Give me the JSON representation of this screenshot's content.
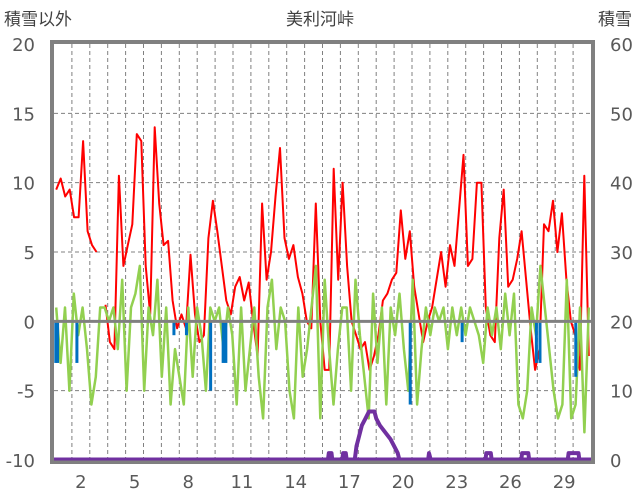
{
  "chart_data": {
    "type": "line",
    "title": "美利河峠",
    "ylabel_left": "積雪以外",
    "ylabel_right": "積雪",
    "xlim": [
      1,
      31
    ],
    "ylim_left": [
      -10,
      20
    ],
    "ylim_right": [
      0,
      60
    ],
    "yticks_left": [
      "20",
      "15",
      "10",
      "5",
      "0",
      "-5",
      "-10"
    ],
    "yticks_left_values": [
      20,
      15,
      10,
      5,
      0,
      -5,
      -10
    ],
    "yticks_right": [
      "60",
      "50",
      "40",
      "30",
      "20",
      "10",
      "0"
    ],
    "yticks_right_values": [
      60,
      50,
      40,
      30,
      20,
      10,
      0
    ],
    "xticks": [
      "2",
      "5",
      "8",
      "11",
      "14",
      "17",
      "20",
      "23",
      "26",
      "29"
    ],
    "xticks_values": [
      2,
      5,
      8,
      11,
      14,
      17,
      20,
      23,
      26,
      29
    ],
    "grid": true,
    "colors": {
      "red": "#ff0000",
      "green": "#92d050",
      "blue": "#0070c0",
      "purple": "#7030a0",
      "axis": "#808080"
    },
    "series": [
      {
        "name": "red",
        "axis": "left",
        "start_day": 1,
        "end_day": 31,
        "values": [
          9.5,
          10.3,
          9,
          9.5,
          7.5,
          7.5,
          13,
          6.5,
          5.5,
          5,
          null,
          1.2,
          -1.5,
          -2,
          10.5,
          4,
          5.5,
          7,
          13.5,
          13,
          4,
          0.5,
          14,
          8.5,
          5.5,
          5.8,
          1.5,
          -0.5,
          0.5,
          -0.5,
          4.8,
          0.5,
          -1.5,
          -1,
          6,
          8.7,
          6.5,
          4,
          1.5,
          0.5,
          2.5,
          3.2,
          1.5,
          2.8,
          0,
          -2.5,
          8.5,
          3,
          5,
          9,
          12.5,
          6,
          4.5,
          5.5,
          3.2,
          2,
          0,
          -0.5,
          8.5,
          0,
          -3.5,
          -3.5,
          11,
          3,
          10,
          4,
          0,
          -1,
          -2,
          -1.5,
          -3.5,
          -2.5,
          -1,
          1.5,
          2,
          3,
          3.5,
          8,
          4.5,
          6.5,
          2.5,
          0.5,
          -1.5,
          0,
          1,
          3,
          5,
          2.5,
          5.5,
          4,
          8,
          12,
          4,
          4.5,
          10,
          10,
          1,
          -1,
          -1.5,
          6,
          9.5,
          2.5,
          3,
          4.5,
          6.5,
          3,
          -0.5,
          -3.5,
          -2,
          7,
          6.5,
          8.7,
          5,
          7.8,
          3,
          0,
          -1,
          -3.5,
          10.5,
          -2.5
        ]
      },
      {
        "name": "green",
        "axis": "left",
        "start_day": 1,
        "end_day": 31,
        "values": [
          1,
          -3,
          1,
          -5,
          2,
          -1,
          1,
          -2,
          -6,
          -4,
          1,
          1,
          0,
          1,
          -2,
          3,
          -5,
          1,
          2,
          4,
          -5,
          1,
          -1,
          3,
          -4,
          1,
          -6,
          -2,
          -4,
          -6,
          1,
          -4,
          1,
          -1,
          -5,
          1,
          0,
          1,
          -2,
          1,
          -1,
          -6,
          1,
          -5,
          -2,
          1,
          -4,
          -7,
          1,
          3,
          -2,
          1,
          0,
          -5,
          -7,
          1,
          -4,
          -2,
          1,
          4,
          -7,
          3,
          -2,
          -6,
          -2,
          1,
          1,
          -5,
          3,
          -1,
          -4,
          -7,
          2,
          -3,
          1,
          -6,
          1,
          -1,
          2,
          -2,
          -5,
          3,
          -6,
          -2,
          1,
          -1,
          1,
          0,
          1,
          -2,
          1,
          -1,
          1,
          -1,
          1,
          0,
          -1,
          -3,
          1,
          -1,
          1,
          -2,
          2,
          -1,
          2,
          -6,
          -7,
          -5,
          1,
          -1,
          4,
          1,
          -2,
          -5,
          -7,
          -6,
          3,
          -7,
          -6,
          1,
          -8,
          1
        ]
      },
      {
        "name": "blue",
        "axis": "left",
        "kind": "bar",
        "points": [
          [
            1.1,
            -3
          ],
          [
            1.2,
            -3
          ],
          [
            2.28,
            -3
          ],
          [
            7.7,
            -1
          ],
          [
            8.4,
            -1
          ],
          [
            9.75,
            -5
          ],
          [
            10.45,
            -3
          ],
          [
            10.6,
            -3
          ],
          [
            20.9,
            -6
          ],
          [
            23.8,
            -1.5
          ],
          [
            27.95,
            -3
          ],
          [
            28.15,
            -3
          ],
          [
            30.15,
            -4
          ]
        ]
      },
      {
        "name": "purple",
        "axis": "right",
        "points": [
          [
            1,
            0
          ],
          [
            3.3,
            0
          ],
          null,
          [
            3.7,
            0
          ],
          [
            16.3,
            0
          ],
          [
            16.35,
            1
          ],
          [
            16.5,
            1
          ],
          [
            16.55,
            0
          ],
          [
            17.1,
            0
          ],
          [
            17.15,
            1
          ],
          [
            17.3,
            1
          ],
          [
            17.35,
            0
          ],
          [
            17.8,
            0
          ],
          [
            17.9,
            2
          ],
          [
            18.0,
            3
          ],
          [
            18.1,
            4
          ],
          [
            18.2,
            5
          ],
          [
            18.4,
            6
          ],
          [
            18.6,
            7
          ],
          [
            18.9,
            7
          ],
          [
            19.0,
            6
          ],
          [
            19.2,
            5
          ],
          [
            19.5,
            4
          ],
          [
            19.8,
            3
          ],
          [
            20.0,
            2
          ],
          [
            20.2,
            1
          ],
          [
            20.3,
            0
          ],
          [
            21.9,
            0
          ],
          [
            21.95,
            1
          ],
          [
            22.05,
            0
          ],
          [
            25.1,
            0
          ],
          [
            25.15,
            1
          ],
          [
            25.4,
            1
          ],
          [
            25.45,
            0
          ],
          [
            27.1,
            0
          ],
          [
            27.15,
            1
          ],
          [
            27.5,
            1
          ],
          [
            27.55,
            0
          ],
          [
            29.7,
            0
          ],
          [
            29.75,
            1
          ],
          [
            30.3,
            1
          ],
          [
            30.35,
            0
          ],
          [
            31,
            0
          ]
        ]
      }
    ]
  }
}
